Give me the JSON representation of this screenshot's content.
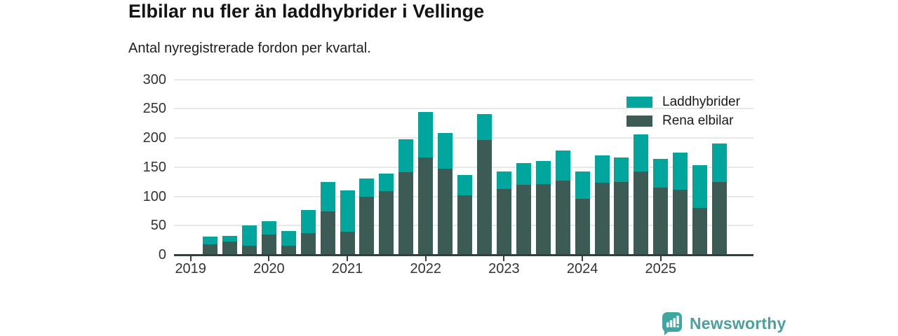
{
  "header": {
    "title": "Elbilar nu fler än laddhybrider i Vellinge",
    "subtitle": "Antal nyregistrerade fordon per kvartal."
  },
  "chart_data": {
    "type": "bar",
    "stacked": true,
    "title": "Elbilar nu fler än laddhybrider i Vellinge",
    "subtitle": "Antal nyregistrerade fordon per kvartal.",
    "xlabel": "",
    "ylabel": "",
    "ylim": [
      0,
      300
    ],
    "yticks": [
      0,
      50,
      100,
      150,
      200,
      250,
      300
    ],
    "grid": "horizontal",
    "legend_position": "top-right",
    "categories": [
      "2019 Q1",
      "2019 Q2",
      "2019 Q3",
      "2019 Q4",
      "2020 Q1",
      "2020 Q2",
      "2020 Q3",
      "2020 Q4",
      "2021 Q1",
      "2021 Q2",
      "2021 Q3",
      "2021 Q4",
      "2022 Q1",
      "2022 Q2",
      "2022 Q3",
      "2022 Q4",
      "2023 Q1",
      "2023 Q2",
      "2023 Q3",
      "2023 Q4",
      "2024 Q1",
      "2024 Q2",
      "2024 Q3",
      "2024 Q4",
      "2025 Q1",
      "2025 Q2",
      "2025 Q3",
      "2025 Q4"
    ],
    "series": [
      {
        "name": "Rena elbilar",
        "color": "#3d5b55",
        "stack_order": "bottom",
        "values": [
          0,
          18,
          23,
          16,
          35,
          16,
          37,
          74,
          40,
          99,
          109,
          141,
          166,
          147,
          102,
          196,
          112,
          120,
          121,
          127,
          96,
          123,
          124,
          143,
          115,
          111,
          80,
          125
        ]
      },
      {
        "name": "Laddhybrider",
        "color": "#00a59c",
        "stack_order": "top",
        "values": [
          0,
          13,
          9,
          34,
          23,
          25,
          40,
          51,
          70,
          32,
          30,
          57,
          78,
          61,
          35,
          45,
          30,
          37,
          39,
          52,
          47,
          47,
          43,
          63,
          49,
          64,
          73,
          65
        ]
      }
    ],
    "totals": [
      0,
      31,
      32,
      50,
      58,
      41,
      77,
      125,
      110,
      131,
      139,
      198,
      244,
      208,
      137,
      241,
      142,
      157,
      160,
      179,
      143,
      170,
      167,
      206,
      164,
      175,
      153,
      190
    ],
    "legend": [
      {
        "label": "Laddhybrider",
        "color": "#00a59c"
      },
      {
        "label": "Rena elbilar",
        "color": "#3d5b55"
      }
    ],
    "year_ticks": [
      {
        "label": "2019",
        "quarter_index": 0
      },
      {
        "label": "2020",
        "quarter_index": 4
      },
      {
        "label": "2021",
        "quarter_index": 8
      },
      {
        "label": "2022",
        "quarter_index": 12
      },
      {
        "label": "2023",
        "quarter_index": 16
      },
      {
        "label": "2024",
        "quarter_index": 20
      },
      {
        "label": "2025",
        "quarter_index": 24
      }
    ]
  },
  "footer": {
    "brand": "Newsworthy",
    "brand_color": "#4ba09e",
    "badge_color": "#3fa7a1",
    "badge_glyph_color": "#ffffff",
    "logo_icon": "bar-chart-pin-icon"
  },
  "colors": {
    "background": "#ffffff",
    "gridline": "#e8e8e8",
    "axis": "#30403c",
    "axis_text": "#333333",
    "title_text": "#141414"
  }
}
